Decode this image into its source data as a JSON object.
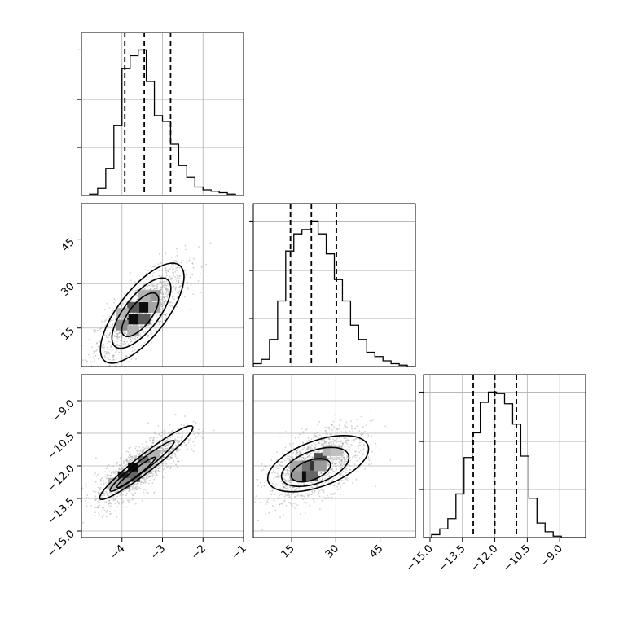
{
  "chart_data": {
    "type": "corner",
    "grid": true,
    "parameters": [
      {
        "ticks": [
          -4,
          -3,
          -2,
          -1
        ],
        "tick_labels": [
          "−4",
          "−3",
          "−2",
          "−1"
        ],
        "range": [
          -5.0,
          -1.0
        ],
        "quantiles": [
          -3.93,
          -3.45,
          -2.8
        ],
        "histogram": {
          "edges": [
            -5.0,
            -4.8,
            -4.6,
            -4.4,
            -4.2,
            -4.0,
            -3.8,
            -3.6,
            -3.4,
            -3.2,
            -3.0,
            -2.8,
            -2.6,
            -2.4,
            -2.2,
            -2.0,
            -1.8,
            -1.6,
            -1.4,
            -1.2,
            -1.0
          ],
          "heights": [
            0.0,
            0.01,
            0.05,
            0.19,
            0.49,
            0.89,
            0.98,
            1.02,
            0.8,
            0.56,
            0.52,
            0.36,
            0.21,
            0.13,
            0.06,
            0.04,
            0.03,
            0.02,
            0.01,
            0.0
          ]
        }
      },
      {
        "ticks": [
          15,
          30,
          45
        ],
        "tick_labels": [
          "15",
          "30",
          "45"
        ],
        "range": [
          2,
          57
        ],
        "quantiles": [
          14.6,
          21.7,
          30.2
        ],
        "histogram": {
          "edges": [
            2,
            4.75,
            7.5,
            10.25,
            13,
            15.75,
            18.5,
            21.25,
            24,
            26.75,
            29.5,
            32.25,
            35,
            37.75,
            40.5,
            43.25,
            46,
            48.75,
            51.5,
            54.25,
            57
          ],
          "heights": [
            0.02,
            0.05,
            0.19,
            0.46,
            0.81,
            0.93,
            0.96,
            1.02,
            0.93,
            0.79,
            0.61,
            0.46,
            0.29,
            0.19,
            0.1,
            0.07,
            0.04,
            0.02,
            0.01,
            0.0
          ]
        }
      },
      {
        "ticks": [
          -15.0,
          -13.5,
          -12.0,
          -10.5,
          -9.0
        ],
        "tick_labels": [
          "−15.0",
          "−13.5",
          "−12.0",
          "−10.5",
          "−9.0"
        ],
        "range": [
          -15.3,
          -7.8
        ],
        "quantiles": [
          -13.0,
          -12.0,
          -11.0
        ],
        "histogram": {
          "edges": [
            -15.3,
            -14.925,
            -14.55,
            -14.175,
            -13.8,
            -13.425,
            -13.05,
            -12.675,
            -12.3,
            -11.925,
            -11.55,
            -11.175,
            -10.8,
            -10.425,
            -10.05,
            -9.675,
            -9.3,
            -8.925,
            -8.55,
            -8.175,
            -7.8
          ],
          "heights": [
            0.0,
            0.02,
            0.06,
            0.13,
            0.3,
            0.55,
            0.72,
            0.93,
            1.0,
            0.99,
            0.92,
            0.78,
            0.56,
            0.27,
            0.1,
            0.04,
            0.01,
            0.0,
            0.0,
            0.0
          ]
        }
      }
    ],
    "pairs": [
      {
        "row": 1,
        "col": 0,
        "samples": {
          "center": [
            -3.55,
            20.0
          ],
          "sd": [
            0.55,
            8.0
          ],
          "rho": 0.78,
          "count": 1400
        },
        "contours": [
          {
            "center": [
              -3.5,
              20.0
            ],
            "rx": 1.5,
            "ry": 8.0,
            "angle_deg": -52
          },
          {
            "center": [
              -3.52,
              20.0
            ],
            "rx": 1.05,
            "ry": 5.8,
            "angle_deg": -52
          },
          {
            "center": [
              -3.55,
              19.5
            ],
            "rx": 0.65,
            "ry": 3.7,
            "angle_deg": -52
          }
        ],
        "density_cells": [
          {
            "x": -3.72,
            "y": 18.0,
            "level": 0.95
          },
          {
            "x": -3.45,
            "y": 22.0,
            "level": 0.95
          },
          {
            "x": -3.72,
            "y": 22.0,
            "level": 0.65
          },
          {
            "x": -3.45,
            "y": 18.0,
            "level": 0.65
          },
          {
            "x": -3.99,
            "y": 16.0,
            "level": 0.45
          },
          {
            "x": -3.2,
            "y": 26.0,
            "level": 0.4
          },
          {
            "x": -3.99,
            "y": 20.0,
            "level": 0.3
          },
          {
            "x": -3.2,
            "y": 22.0,
            "level": 0.35
          },
          {
            "x": -3.72,
            "y": 14.0,
            "level": 0.3
          },
          {
            "x": -3.45,
            "y": 26.0,
            "level": 0.3
          }
        ]
      },
      {
        "row": 2,
        "col": 0,
        "samples": {
          "center": [
            -3.55,
            -12.1
          ],
          "sd": [
            0.55,
            0.85
          ],
          "rho": 0.8,
          "count": 1400
        },
        "contours": [
          {
            "center": [
              -3.4,
              -11.85
            ],
            "rx": 1.45,
            "ry": 0.4,
            "angle_deg": -38
          },
          {
            "center": [
              -3.5,
              -12.0
            ],
            "rx": 1.0,
            "ry": 0.25,
            "angle_deg": -38
          },
          {
            "center": [
              -3.65,
              -12.3
            ],
            "rx": 0.6,
            "ry": 0.15,
            "angle_deg": -38
          }
        ],
        "density_cells": [
          {
            "x": -3.7,
            "y": -12.1,
            "level": 0.95
          },
          {
            "x": -3.95,
            "y": -12.5,
            "level": 0.85
          },
          {
            "x": -3.45,
            "y": -11.8,
            "level": 0.55
          },
          {
            "x": -3.7,
            "y": -12.5,
            "level": 0.6
          },
          {
            "x": -3.95,
            "y": -12.8,
            "level": 0.45
          },
          {
            "x": -3.45,
            "y": -12.1,
            "level": 0.35
          },
          {
            "x": -3.2,
            "y": -11.5,
            "level": 0.3
          },
          {
            "x": -4.2,
            "y": -12.8,
            "level": 0.3
          }
        ]
      },
      {
        "row": 2,
        "col": 1,
        "samples": {
          "center": [
            23.0,
            -12.0
          ],
          "sd": [
            8.0,
            0.85
          ],
          "rho": 0.55,
          "count": 1400
        },
        "contours": [
          {
            "center": [
              24.0,
              -11.9
            ],
            "rx": 18.0,
            "ry": 1.05,
            "angle_deg": -20
          },
          {
            "center": [
              23.0,
              -12.05
            ],
            "rx": 12.0,
            "ry": 0.75,
            "angle_deg": -20
          },
          {
            "center": [
              21.5,
              -12.2
            ],
            "rx": 7.0,
            "ry": 0.45,
            "angle_deg": -20
          }
        ],
        "density_cells": [
          {
            "x": 19.2,
            "y": -12.45,
            "level": 0.95
          },
          {
            "x": 22.0,
            "y": -12.0,
            "level": 0.8
          },
          {
            "x": 24.75,
            "y": -11.65,
            "level": 0.7
          },
          {
            "x": 22.0,
            "y": -12.45,
            "level": 0.6
          },
          {
            "x": 19.2,
            "y": -12.0,
            "level": 0.55
          },
          {
            "x": 16.5,
            "y": -12.45,
            "level": 0.4
          },
          {
            "x": 24.75,
            "y": -12.0,
            "level": 0.4
          },
          {
            "x": 27.5,
            "y": -11.3,
            "level": 0.3
          },
          {
            "x": 16.5,
            "y": -12.0,
            "level": 0.35
          },
          {
            "x": 30.2,
            "y": -11.3,
            "level": 0.25
          }
        ]
      }
    ]
  }
}
